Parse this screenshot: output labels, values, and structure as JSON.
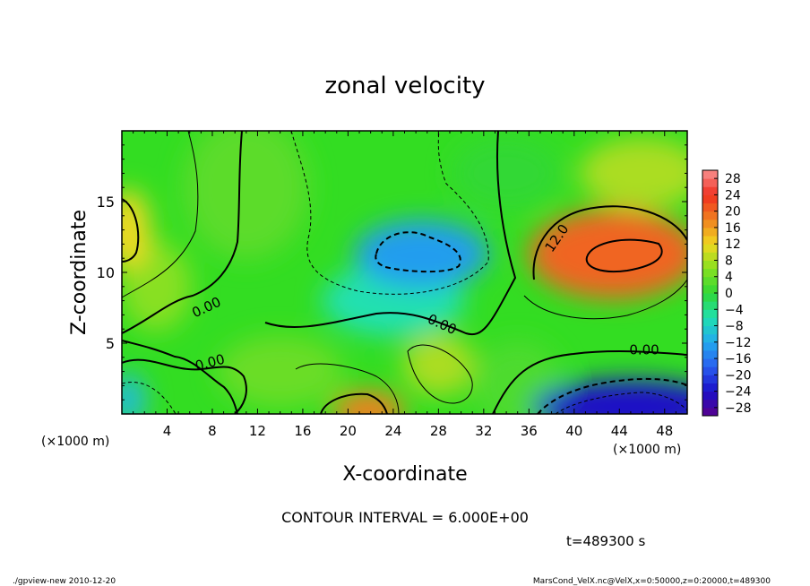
{
  "chart_data": {
    "type": "heatmap",
    "title": "zonal velocity",
    "xlabel": "X-coordinate",
    "ylabel": "Z-coordinate",
    "x_unit_left": "(×1000 m)",
    "x_unit_right": "(×1000 m)",
    "xlim": [
      0,
      50
    ],
    "ylim": [
      0,
      20
    ],
    "x_ticks": [
      4,
      8,
      12,
      16,
      20,
      24,
      28,
      32,
      36,
      40,
      44,
      48
    ],
    "y_ticks": [
      5,
      10,
      15
    ],
    "colorbar": {
      "levels": [
        28,
        24,
        20,
        16,
        12,
        8,
        4,
        0,
        -4,
        -8,
        -12,
        -16,
        -20,
        -24,
        -28
      ],
      "labels": [
        "28",
        "24",
        "20",
        "16",
        "12",
        "8",
        "4",
        "0",
        "−4",
        "−8",
        "−12",
        "−16",
        "−20",
        "−24",
        "−28"
      ],
      "range": [
        -30,
        30
      ]
    },
    "contour_interval_text": "CONTOUR INTERVAL = 6.000E+00",
    "contour_labels": [
      {
        "text": "0.00",
        "x": 7.5,
        "y": 7.5,
        "angle": -25
      },
      {
        "text": "0.00",
        "x": 7.8,
        "y": 3.6,
        "angle": -15
      },
      {
        "text": "0.00",
        "x": 28.3,
        "y": 6.3,
        "angle": 25
      },
      {
        "text": "0.00",
        "x": 46.2,
        "y": 4.5,
        "angle": 0
      },
      {
        "text": "12.0",
        "x": 38.5,
        "y": 12.4,
        "angle": -55
      }
    ],
    "features": [
      {
        "x": 43.5,
        "z": 11.3,
        "value": 20
      },
      {
        "x": 26.5,
        "z": 11.3,
        "value": -13
      },
      {
        "x": 45.0,
        "z": 0.5,
        "value": -24
      },
      {
        "x": 21.8,
        "z": 0.2,
        "value": 18
      },
      {
        "x": 0.5,
        "z": 13.0,
        "value": 12
      },
      {
        "x": 0.5,
        "z": 1.0,
        "value": -10
      },
      {
        "x": 28.0,
        "z": 3.5,
        "value": 8
      }
    ],
    "time_text": "t=489300  s",
    "footer_left": "./gpview-new  2010-12-20",
    "footer_right": "MarsCond_VelX.nc@VelX,x=0:50000,z=0:20000,t=489300"
  }
}
